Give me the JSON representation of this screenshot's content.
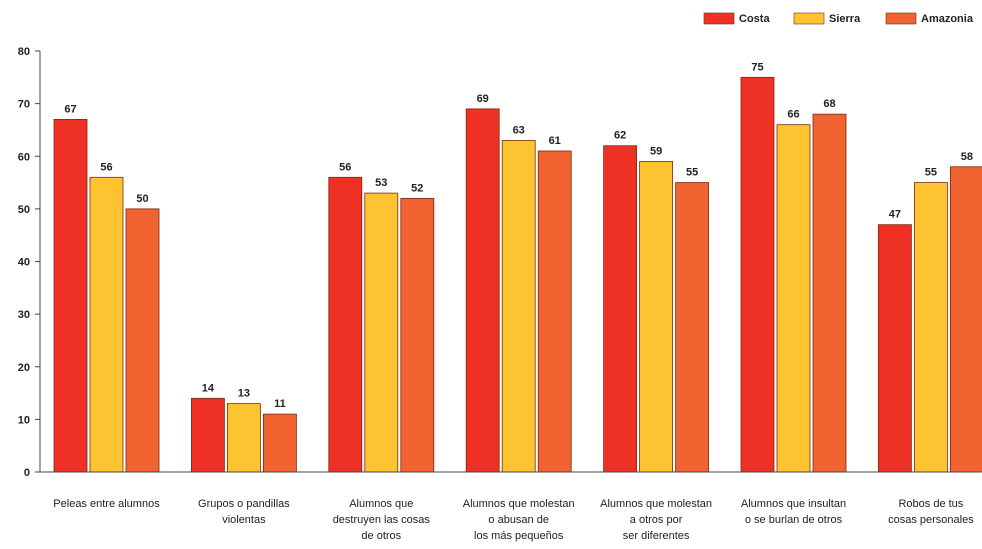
{
  "chart_data": {
    "type": "bar",
    "title": "",
    "xlabel": "",
    "ylabel": "",
    "ylim": [
      0,
      80
    ],
    "yticks": [
      0,
      10,
      20,
      30,
      40,
      50,
      60,
      70,
      80
    ],
    "grid": false,
    "legend_position": "top-right",
    "categories": [
      [
        "Peleas entre alumnos"
      ],
      [
        "Grupos o pandillas",
        "violentas"
      ],
      [
        "Alumnos que",
        "destruyen las cosas",
        "de otros"
      ],
      [
        "Alumnos que molestan",
        "o abusan de",
        "los más pequeños"
      ],
      [
        "Alumnos que molestan",
        "a otros por",
        "ser diferentes"
      ],
      [
        "Alumnos que insultan",
        "o se burlan de otros"
      ],
      [
        "Robos de tus",
        "cosas personales"
      ]
    ],
    "series": [
      {
        "name": "Costa",
        "color": "#ef3125",
        "values": [
          67,
          14,
          56,
          69,
          62,
          75,
          47
        ]
      },
      {
        "name": "Sierra",
        "color": "#fdc331",
        "values": [
          56,
          13,
          53,
          63,
          59,
          66,
          55
        ]
      },
      {
        "name": "Amazonia",
        "color": "#f16431",
        "values": [
          50,
          11,
          52,
          61,
          55,
          68,
          58
        ]
      }
    ]
  }
}
